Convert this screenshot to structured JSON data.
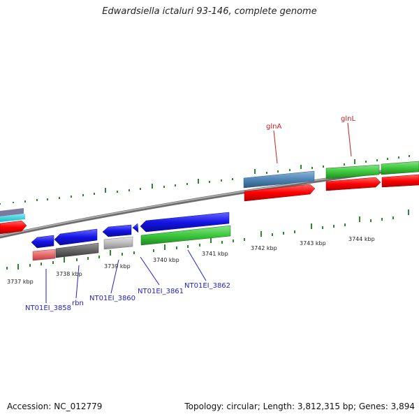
{
  "title": "Edwardsiella ictaluri 93-146, complete genome",
  "footer": {
    "accession": "Accession: NC_012779",
    "summary": "Topology: circular; Length: 3,812,315 bp; Genes: 3,894"
  },
  "scale_labels": [
    "3737 kbp",
    "3738 kbp",
    "3739 kbp",
    "3740 kbp",
    "3741 kbp",
    "3742 kbp",
    "3743 kbp",
    "3744 kbp"
  ],
  "gene_labels": {
    "glnA": "glnA",
    "glnL": "glnL",
    "nt3858": "NT01EI_3858",
    "rbn": "rbn",
    "nt3860": "NT01EI_3860",
    "nt3861": "NT01EI_3861",
    "nt3862": "NT01EI_3862"
  },
  "colors": {
    "cds_forward": "#ff0000",
    "cds_reverse": "#1414e6",
    "rna_blast": "#3cc83c",
    "steelblue": "#4f86b6",
    "backbone": "#8a8a8a",
    "tick": "#2a8a2a",
    "label_blue": "#1f1fd0",
    "label_red": "#c81e1e"
  }
}
